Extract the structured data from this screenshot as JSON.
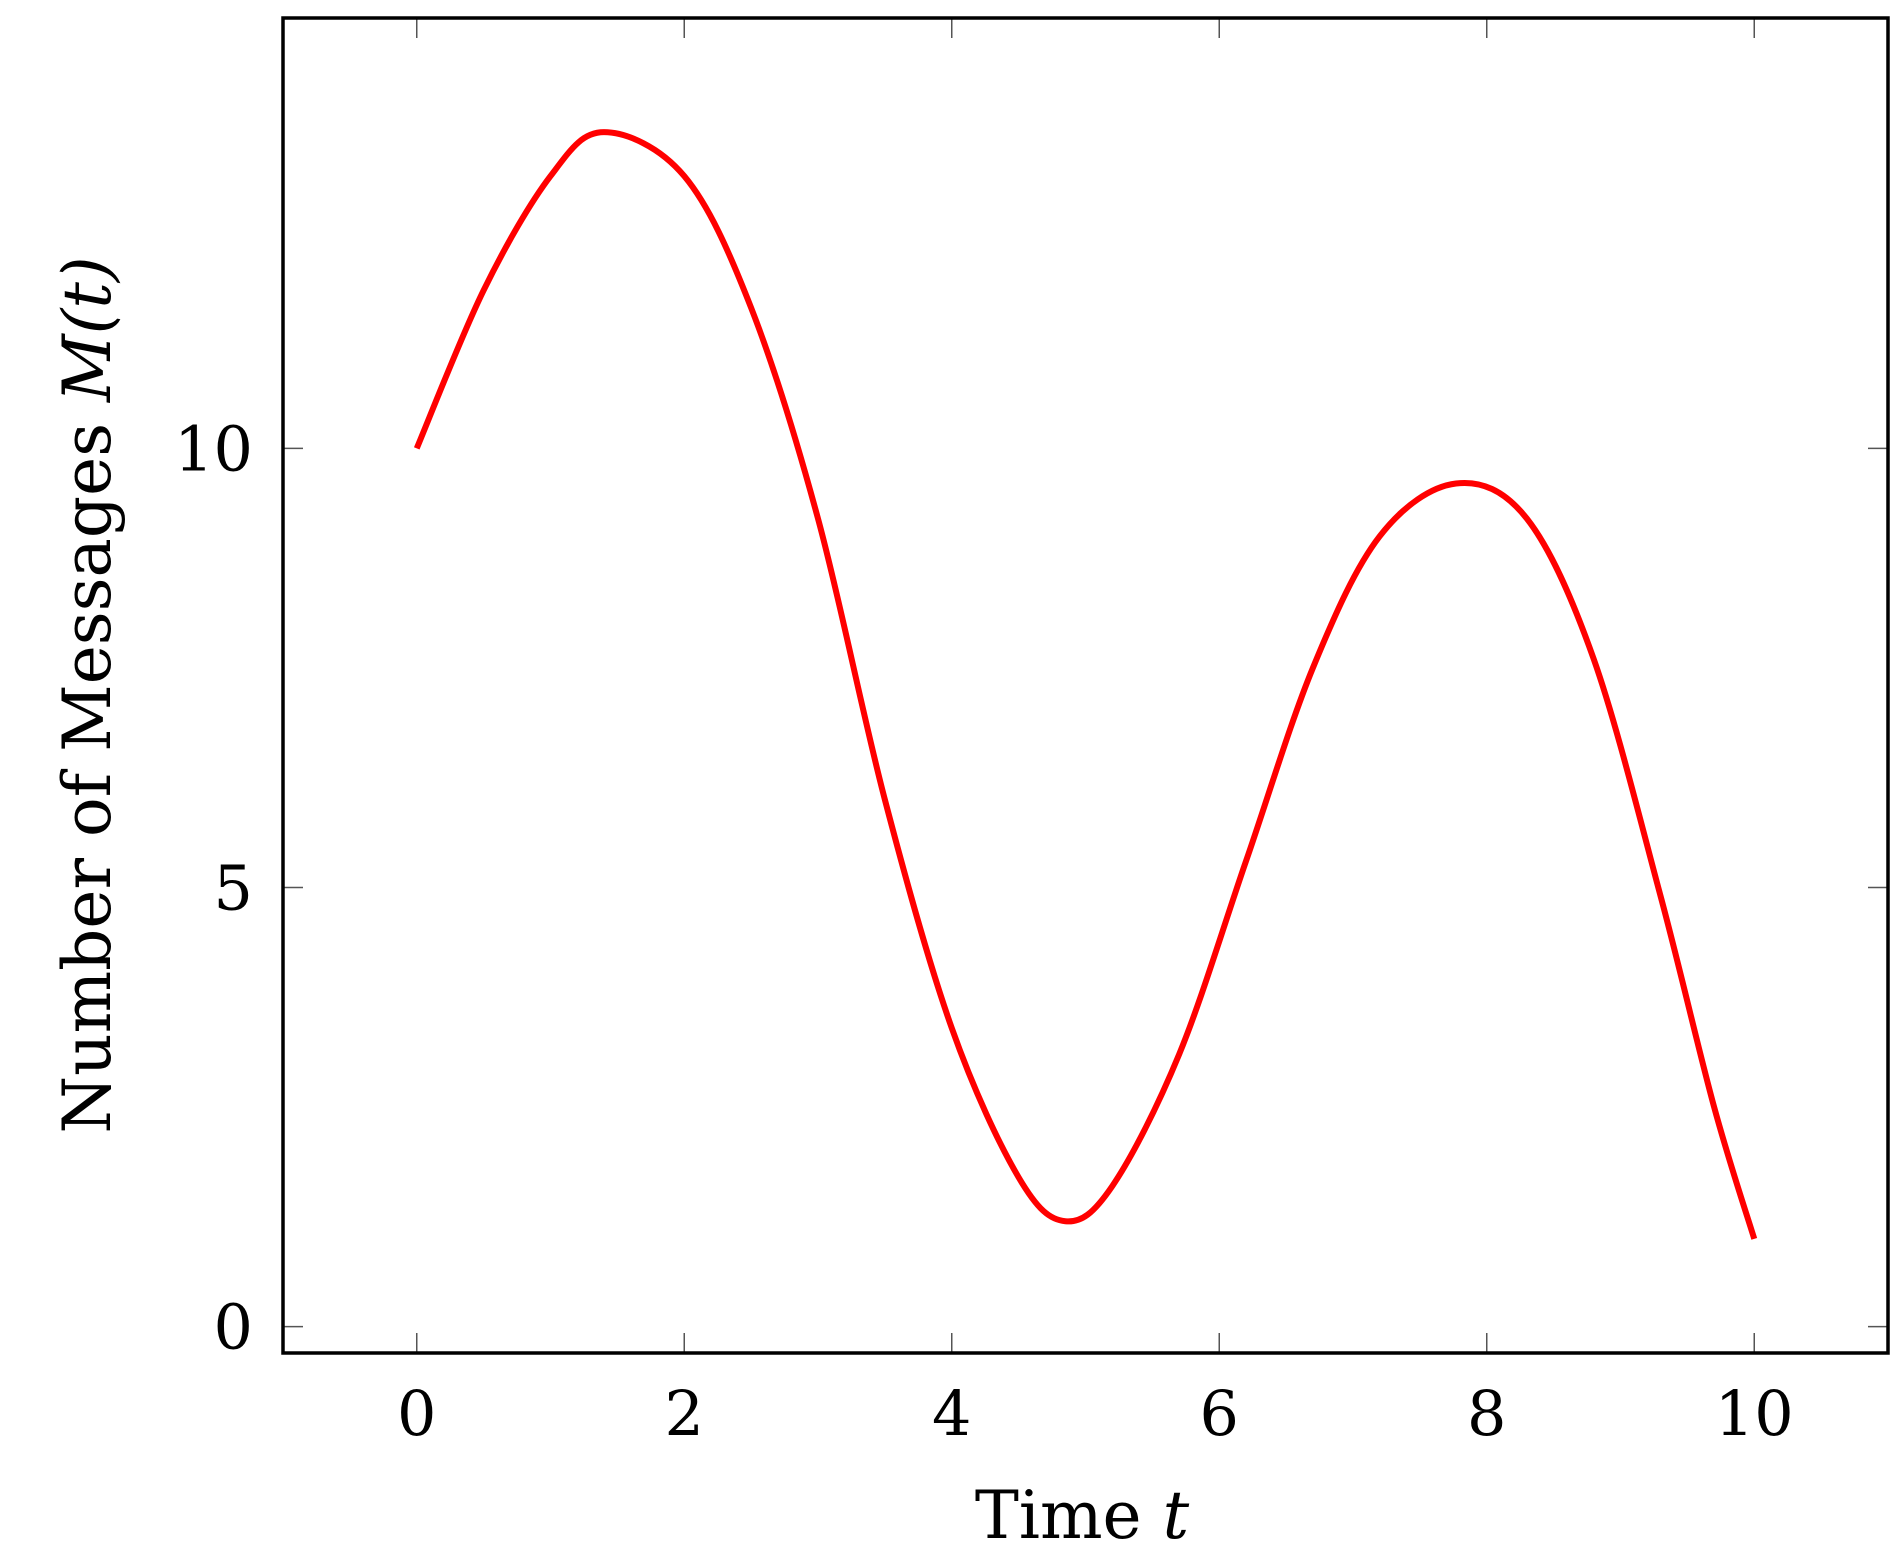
{
  "chart_data": {
    "type": "line",
    "title": "",
    "xlabel": "Time",
    "xlabel_var": "t",
    "ylabel": "Number of Messages",
    "ylabel_var": "M(t)",
    "xlim": [
      -1,
      11
    ],
    "ylim": [
      -0.3,
      14.9
    ],
    "xticks": [
      0,
      2,
      4,
      6,
      8,
      10
    ],
    "xtick_labels": [
      "0",
      "2",
      "4",
      "6",
      "8",
      "10"
    ],
    "yticks": [
      0,
      5,
      10
    ],
    "ytick_labels": [
      "0",
      "5",
      "10"
    ],
    "grid": false,
    "legend": "none",
    "series": [
      {
        "color": "#ff0000",
        "x": [
          0,
          0.5,
          1.0,
          1.4,
          2.0,
          2.5,
          3.0,
          3.5,
          4.0,
          4.5,
          4.85,
          5.2,
          5.7,
          6.2,
          6.7,
          7.2,
          7.77,
          8.3,
          8.8,
          9.3,
          9.7,
          10.0
        ],
        "y": [
          10.0,
          11.8,
          13.1,
          13.6,
          13.1,
          11.6,
          9.2,
          6.0,
          3.4,
          1.7,
          1.2,
          1.6,
          3.1,
          5.3,
          7.5,
          9.0,
          9.6,
          9.2,
          7.6,
          4.9,
          2.5,
          1.0
        ]
      }
    ]
  }
}
